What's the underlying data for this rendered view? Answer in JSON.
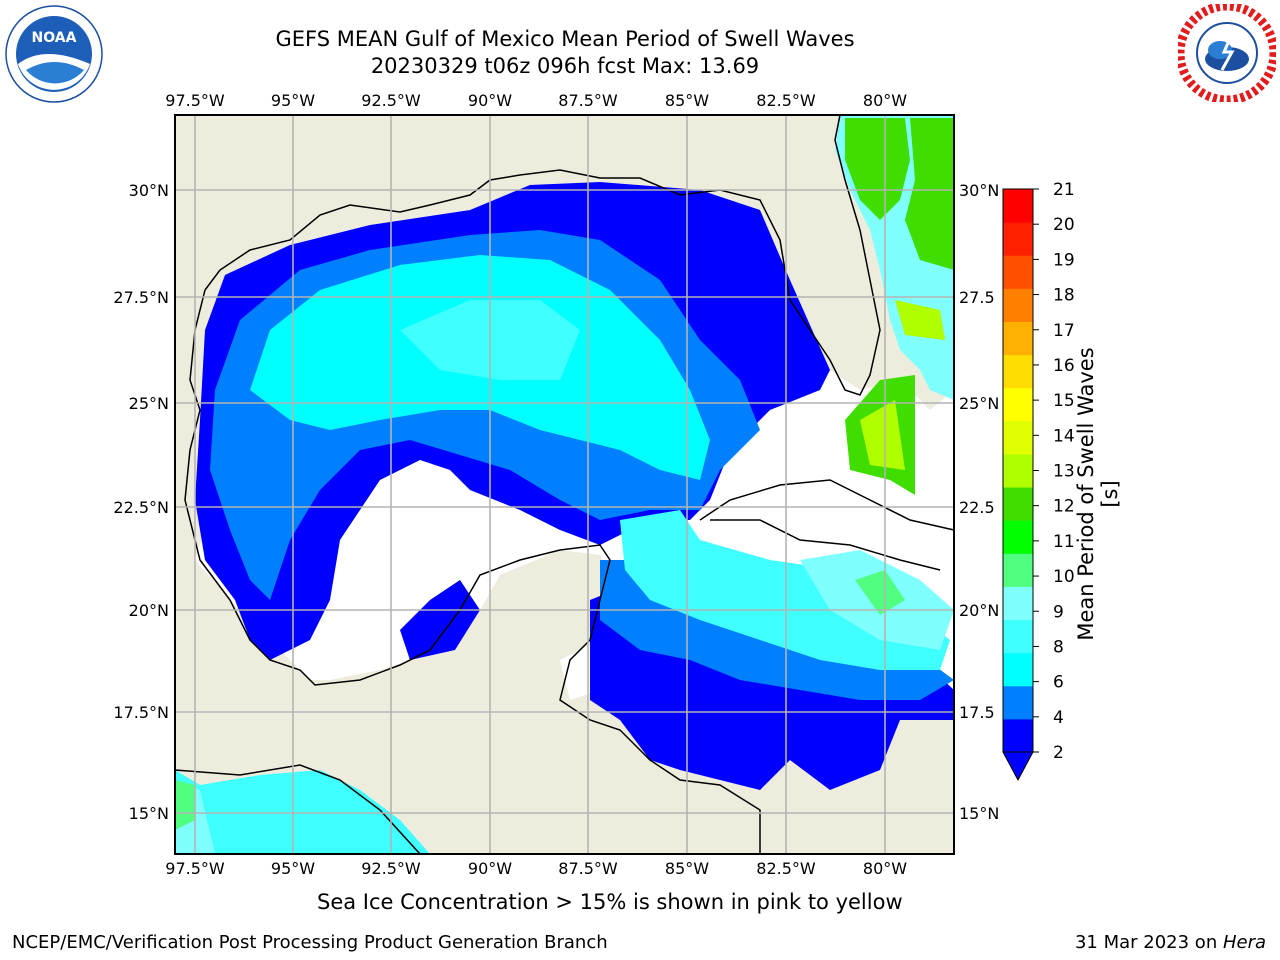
{
  "header": {
    "title_line1": "GEFS MEAN Gulf of Mexico Mean Period of Swell Waves",
    "title_line2": "20230329 t06z 096h fcst   Max: 13.69"
  },
  "logos": {
    "left": "NOAA",
    "left_ring_text": "NATIONAL OCEANIC AND ATMOSPHERIC ADMINISTRATION · U.S. DEPARTMENT OF COMMERCE",
    "right_ring_text": "NATIONAL WEATHER SERVICE"
  },
  "map": {
    "lon_labels": [
      "97.5°W",
      "95°W",
      "92.5°W",
      "90°W",
      "87.5°W",
      "85°W",
      "82.5°W",
      "80°W"
    ],
    "lat_labels_left": [
      "30°N",
      "27.5°N",
      "25°N",
      "22.5°N",
      "20°N",
      "17.5°N",
      "15°N"
    ],
    "lat_labels_right": [
      "30°N",
      "27.5",
      "25°N",
      "22.5",
      "20°N",
      "17.5",
      "15°N"
    ],
    "land_color": "#eeecdc",
    "grid_color": "#b4b4b4"
  },
  "colorbar": {
    "label": "Mean Period of Swell Waves [s]",
    "ticks": [
      "21",
      "20",
      "19",
      "18",
      "17",
      "16",
      "15",
      "14",
      "13",
      "12",
      "11",
      "10",
      "9",
      "8",
      "6",
      "4",
      "2"
    ],
    "colors_bottom_to_top": [
      "#0000ff",
      "#0080ff",
      "#00ffff",
      "#40ffff",
      "#80ffff",
      "#50ff80",
      "#00ff00",
      "#40dd00",
      "#b0ff00",
      "#e0ff00",
      "#ffff00",
      "#ffdd00",
      "#ffb000",
      "#ff8000",
      "#ff5000",
      "#ff2000",
      "#ff0000"
    ],
    "extend_color": "#0000ff"
  },
  "note": "Sea Ice Concentration > 15% is shown in pink to yellow",
  "footer": {
    "left": "NCEP/EMC/Verification Post Processing Product Generation Branch",
    "right_date": "31 Mar 2023 on ",
    "right_host": "Hera"
  }
}
